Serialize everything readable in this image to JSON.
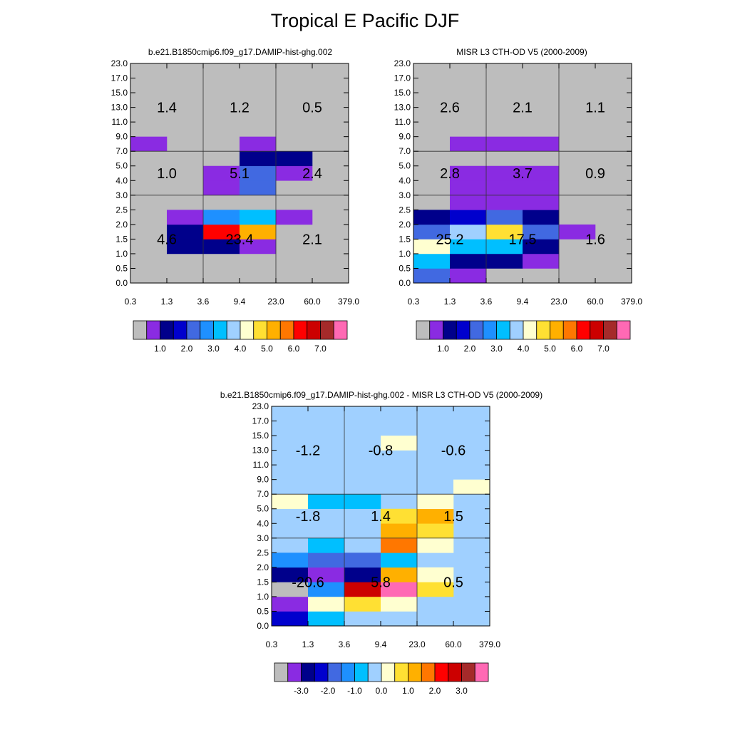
{
  "title": "Tropical E Pacific DJF",
  "palette": [
    "#bdbdbd",
    "#8a2be2",
    "#00008b",
    "#0000cd",
    "#4169e1",
    "#1e90ff",
    "#00bfff",
    "#a0d0ff",
    "#ffffd0",
    "#ffe033",
    "#ffb000",
    "#ff7700",
    "#ff0000",
    "#cc0000",
    "#a52a2a",
    "#ff69b4"
  ],
  "cth_ticks": [
    "0.0",
    "0.5",
    "1.0",
    "1.5",
    "2.0",
    "2.5",
    "3.0",
    "4.0",
    "5.0",
    "7.0",
    "9.0",
    "11.0",
    "13.0",
    "15.0",
    "17.0",
    "23.0"
  ],
  "tau_ticks": [
    "0.3",
    "1.3",
    "3.6",
    "9.4",
    "23.0",
    "60.0",
    "379.0"
  ],
  "chart_data": [
    {
      "type": "heatmap",
      "title": "b.e21.B1850cmip6.f09_g17.DAMIP-hist-ghg.002",
      "background": 0,
      "cells": [
        {
          "tau": 1,
          "cth": 2,
          "c": 2
        },
        {
          "tau": 2,
          "cth": 2,
          "c": 2
        },
        {
          "tau": 3,
          "cth": 2,
          "c": 1
        },
        {
          "tau": 1,
          "cth": 3,
          "c": 2
        },
        {
          "tau": 2,
          "cth": 3,
          "c": 12
        },
        {
          "tau": 3,
          "cth": 3,
          "c": 10
        },
        {
          "tau": 1,
          "cth": 4,
          "c": 1
        },
        {
          "tau": 2,
          "cth": 4,
          "c": 5
        },
        {
          "tau": 3,
          "cth": 4,
          "c": 6
        },
        {
          "tau": 4,
          "cth": 4,
          "c": 1
        },
        {
          "tau": 2,
          "cth": 6,
          "c": 1
        },
        {
          "tau": 3,
          "cth": 6,
          "c": 4
        },
        {
          "tau": 2,
          "cth": 7,
          "c": 1
        },
        {
          "tau": 3,
          "cth": 7,
          "c": 4
        },
        {
          "tau": 4,
          "cth": 7,
          "c": 1
        },
        {
          "tau": 3,
          "cth": 8,
          "c": 2
        },
        {
          "tau": 4,
          "cth": 8,
          "c": 2
        },
        {
          "tau": 0,
          "cth": 9,
          "c": 1
        },
        {
          "tau": 3,
          "cth": 9,
          "c": 1
        }
      ],
      "values": [
        {
          "label": "4.6",
          "col": 0,
          "row": 0
        },
        {
          "label": "23.4",
          "col": 1,
          "row": 0
        },
        {
          "label": "2.1",
          "col": 2,
          "row": 0
        },
        {
          "label": "1.0",
          "col": 0,
          "row": 1
        },
        {
          "label": "5.1",
          "col": 1,
          "row": 1
        },
        {
          "label": "2.4",
          "col": 2,
          "row": 1
        },
        {
          "label": "1.4",
          "col": 0,
          "row": 2
        },
        {
          "label": "1.2",
          "col": 1,
          "row": 2
        },
        {
          "label": "0.5",
          "col": 2,
          "row": 2
        }
      ],
      "colorbar_labels": [
        "1.0",
        "2.0",
        "3.0",
        "4.0",
        "5.0",
        "6.0",
        "7.0"
      ]
    },
    {
      "type": "heatmap",
      "title": "MISR L3 CTH-OD V5 (2000-2009)",
      "background": 0,
      "cells": [
        {
          "tau": 0,
          "cth": 0,
          "c": 4
        },
        {
          "tau": 1,
          "cth": 0,
          "c": 1
        },
        {
          "tau": 0,
          "cth": 1,
          "c": 6
        },
        {
          "tau": 1,
          "cth": 1,
          "c": 2
        },
        {
          "tau": 2,
          "cth": 1,
          "c": 2
        },
        {
          "tau": 3,
          "cth": 1,
          "c": 1
        },
        {
          "tau": 0,
          "cth": 2,
          "c": 8
        },
        {
          "tau": 1,
          "cth": 2,
          "c": 6
        },
        {
          "tau": 2,
          "cth": 2,
          "c": 6
        },
        {
          "tau": 3,
          "cth": 2,
          "c": 2
        },
        {
          "tau": 0,
          "cth": 3,
          "c": 4
        },
        {
          "tau": 1,
          "cth": 3,
          "c": 7
        },
        {
          "tau": 2,
          "cth": 3,
          "c": 9
        },
        {
          "tau": 3,
          "cth": 3,
          "c": 4
        },
        {
          "tau": 4,
          "cth": 3,
          "c": 1
        },
        {
          "tau": 0,
          "cth": 4,
          "c": 2
        },
        {
          "tau": 1,
          "cth": 4,
          "c": 3
        },
        {
          "tau": 2,
          "cth": 4,
          "c": 4
        },
        {
          "tau": 3,
          "cth": 4,
          "c": 2
        },
        {
          "tau": 1,
          "cth": 5,
          "c": 1
        },
        {
          "tau": 2,
          "cth": 5,
          "c": 1
        },
        {
          "tau": 3,
          "cth": 5,
          "c": 1
        },
        {
          "tau": 1,
          "cth": 6,
          "c": 1
        },
        {
          "tau": 2,
          "cth": 6,
          "c": 1
        },
        {
          "tau": 3,
          "cth": 6,
          "c": 1
        },
        {
          "tau": 1,
          "cth": 7,
          "c": 1
        },
        {
          "tau": 2,
          "cth": 7,
          "c": 1
        },
        {
          "tau": 3,
          "cth": 7,
          "c": 1
        },
        {
          "tau": 1,
          "cth": 9,
          "c": 1
        },
        {
          "tau": 2,
          "cth": 9,
          "c": 1
        },
        {
          "tau": 3,
          "cth": 9,
          "c": 1
        }
      ],
      "values": [
        {
          "label": "25.2",
          "col": 0,
          "row": 0
        },
        {
          "label": "17.5",
          "col": 1,
          "row": 0
        },
        {
          "label": "1.6",
          "col": 2,
          "row": 0
        },
        {
          "label": "2.8",
          "col": 0,
          "row": 1
        },
        {
          "label": "3.7",
          "col": 1,
          "row": 1
        },
        {
          "label": "0.9",
          "col": 2,
          "row": 1
        },
        {
          "label": "2.6",
          "col": 0,
          "row": 2
        },
        {
          "label": "2.1",
          "col": 1,
          "row": 2
        },
        {
          "label": "1.1",
          "col": 2,
          "row": 2
        }
      ],
      "colorbar_labels": [
        "1.0",
        "2.0",
        "3.0",
        "4.0",
        "5.0",
        "6.0",
        "7.0"
      ]
    },
    {
      "type": "heatmap",
      "title": "b.e21.B1850cmip6.f09_g17.DAMIP-hist-ghg.002 - MISR L3 CTH-OD V5 (2000-2009)",
      "background": 7,
      "cells": [
        {
          "tau": 0,
          "cth": 0,
          "c": 3
        },
        {
          "tau": 1,
          "cth": 0,
          "c": 6
        },
        {
          "tau": 0,
          "cth": 1,
          "c": 1
        },
        {
          "tau": 1,
          "cth": 1,
          "c": 8
        },
        {
          "tau": 2,
          "cth": 1,
          "c": 9
        },
        {
          "tau": 3,
          "cth": 1,
          "c": 8
        },
        {
          "tau": 0,
          "cth": 2,
          "c": 0
        },
        {
          "tau": 1,
          "cth": 2,
          "c": 5
        },
        {
          "tau": 2,
          "cth": 2,
          "c": 13
        },
        {
          "tau": 3,
          "cth": 2,
          "c": 15
        },
        {
          "tau": 4,
          "cth": 2,
          "c": 9
        },
        {
          "tau": 0,
          "cth": 3,
          "c": 2
        },
        {
          "tau": 1,
          "cth": 3,
          "c": 1
        },
        {
          "tau": 2,
          "cth": 3,
          "c": 2
        },
        {
          "tau": 3,
          "cth": 3,
          "c": 10
        },
        {
          "tau": 4,
          "cth": 3,
          "c": 8
        },
        {
          "tau": 0,
          "cth": 4,
          "c": 5
        },
        {
          "tau": 1,
          "cth": 4,
          "c": 4
        },
        {
          "tau": 2,
          "cth": 4,
          "c": 4
        },
        {
          "tau": 3,
          "cth": 4,
          "c": 6
        },
        {
          "tau": 1,
          "cth": 5,
          "c": 6
        },
        {
          "tau": 3,
          "cth": 5,
          "c": 11
        },
        {
          "tau": 4,
          "cth": 5,
          "c": 8
        },
        {
          "tau": 3,
          "cth": 6,
          "c": 10
        },
        {
          "tau": 4,
          "cth": 6,
          "c": 9
        },
        {
          "tau": 3,
          "cth": 7,
          "c": 9
        },
        {
          "tau": 4,
          "cth": 7,
          "c": 10
        },
        {
          "tau": 0,
          "cth": 8,
          "c": 8
        },
        {
          "tau": 1,
          "cth": 8,
          "c": 6
        },
        {
          "tau": 2,
          "cth": 8,
          "c": 6
        },
        {
          "tau": 4,
          "cth": 8,
          "c": 8
        },
        {
          "tau": 5,
          "cth": 9,
          "c": 8
        },
        {
          "tau": 3,
          "cth": 12,
          "c": 8
        }
      ],
      "values": [
        {
          "label": "-20.6",
          "col": 0,
          "row": 0
        },
        {
          "label": "5.8",
          "col": 1,
          "row": 0
        },
        {
          "label": "0.5",
          "col": 2,
          "row": 0
        },
        {
          "label": "-1.8",
          "col": 0,
          "row": 1
        },
        {
          "label": "1.4",
          "col": 1,
          "row": 1
        },
        {
          "label": "1.5",
          "col": 2,
          "row": 1
        },
        {
          "label": "-1.2",
          "col": 0,
          "row": 2
        },
        {
          "label": "-0.8",
          "col": 1,
          "row": 2
        },
        {
          "label": "-0.6",
          "col": 2,
          "row": 2
        }
      ],
      "colorbar_labels": [
        "-3.0",
        "-2.0",
        "-1.0",
        "0.0",
        "1.0",
        "2.0",
        "3.0"
      ]
    }
  ]
}
